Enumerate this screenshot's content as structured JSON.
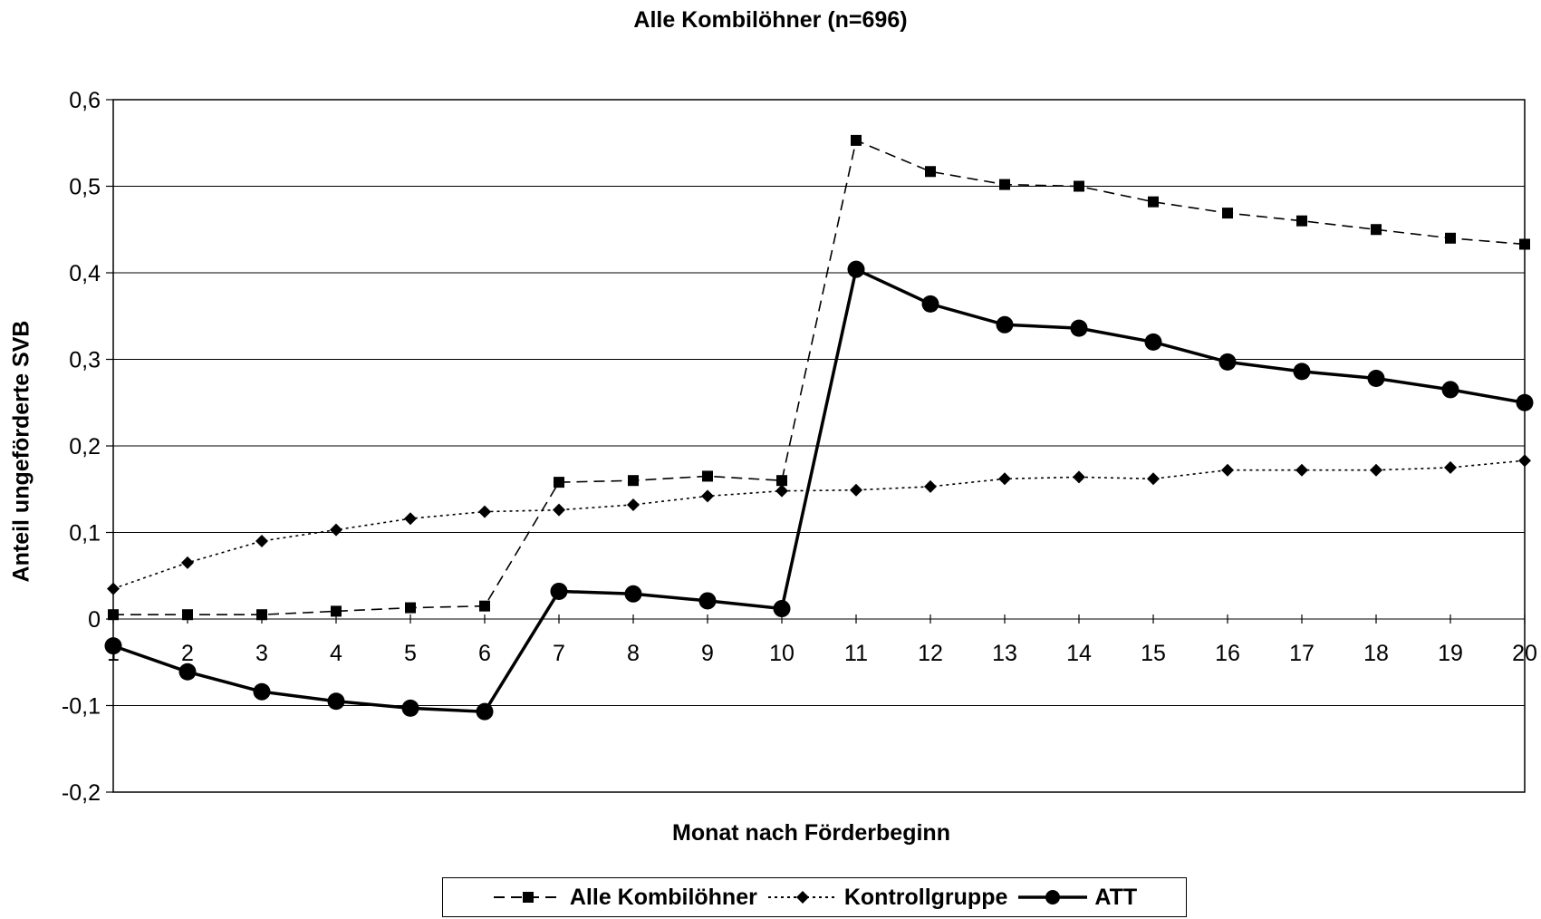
{
  "chart_data": {
    "type": "line",
    "title": "Alle Kombilöhner (n=696)",
    "xlabel": "Monat nach Förderbeginn",
    "ylabel": "Anteil ungeförderte SVB",
    "x": [
      1,
      2,
      3,
      4,
      5,
      6,
      7,
      8,
      9,
      10,
      11,
      12,
      13,
      14,
      15,
      16,
      17,
      18,
      19,
      20
    ],
    "x_tick_labels": [
      "1",
      "2",
      "3",
      "4",
      "5",
      "6",
      "7",
      "8",
      "9",
      "10",
      "11",
      "12",
      "13",
      "14",
      "15",
      "16",
      "17",
      "18",
      "19",
      "20"
    ],
    "ylim": [
      -0.2,
      0.6
    ],
    "y_ticks": [
      -0.2,
      -0.1,
      0,
      0.1,
      0.2,
      0.3,
      0.4,
      0.5,
      0.6
    ],
    "y_tick_labels": [
      "-0,2",
      "-0,1",
      "0",
      "0,1",
      "0,2",
      "0,3",
      "0,4",
      "0,5",
      "0,6"
    ],
    "grid": "horizontal",
    "legend_position": "bottom",
    "series": [
      {
        "name": "Alle Kombilöhner",
        "marker": "square",
        "line": "dashed",
        "values": [
          0.005,
          0.005,
          0.005,
          0.009,
          0.013,
          0.015,
          0.158,
          0.16,
          0.165,
          0.16,
          0.553,
          0.517,
          0.502,
          0.5,
          0.482,
          0.469,
          0.46,
          0.45,
          0.44,
          0.433
        ]
      },
      {
        "name": "Kontrollgruppe",
        "marker": "diamond",
        "line": "dotted",
        "values": [
          0.035,
          0.065,
          0.09,
          0.103,
          0.116,
          0.124,
          0.126,
          0.132,
          0.142,
          0.148,
          0.149,
          0.153,
          0.162,
          0.164,
          0.162,
          0.172,
          0.172,
          0.172,
          0.175,
          0.183
        ]
      },
      {
        "name": "ATT",
        "marker": "circle",
        "line": "solid",
        "values": [
          -0.031,
          -0.061,
          -0.084,
          -0.095,
          -0.103,
          -0.107,
          0.032,
          0.029,
          0.021,
          0.012,
          0.404,
          0.364,
          0.34,
          0.336,
          0.32,
          0.297,
          0.286,
          0.278,
          0.265,
          0.25
        ]
      }
    ]
  }
}
